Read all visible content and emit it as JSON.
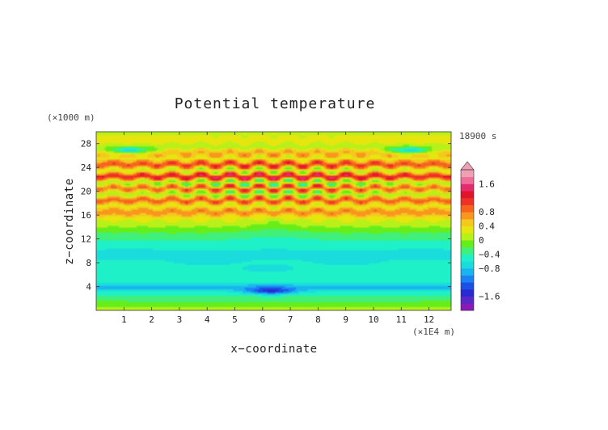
{
  "chart_data": {
    "type": "heatmap",
    "title": "Potential temperature",
    "xlabel": "x−coordinate",
    "ylabel": "z−coordinate",
    "x_unit": "(×1E4 m)",
    "y_unit": "(×1000 m)",
    "time_label": "18900 s",
    "xlim": [
      0,
      12.8
    ],
    "ylim": [
      0,
      30
    ],
    "x_ticks": [
      1,
      2,
      3,
      4,
      5,
      6,
      7,
      8,
      9,
      10,
      11,
      12
    ],
    "y_ticks": [
      4,
      8,
      12,
      16,
      20,
      24,
      28
    ],
    "colorbar": {
      "range": [
        -2.0,
        2.0
      ],
      "step": 0.2,
      "tick_values": [
        1.6,
        0.8,
        0.4,
        0,
        -0.4,
        -0.8,
        -1.6
      ],
      "tick_labels": [
        "1.6",
        "0.8",
        "0.4",
        "0",
        "−0.4",
        "−0.8",
        "−1.6"
      ],
      "colors": [
        "#8a1ab8",
        "#5a28c8",
        "#2a2ad2",
        "#1a50e6",
        "#1a82f4",
        "#1ab4f0",
        "#1adcdc",
        "#1ef0c8",
        "#40f07a",
        "#66ee1a",
        "#b8f01a",
        "#e6e60e",
        "#f5c81e",
        "#f8961e",
        "#f5641e",
        "#ee3228",
        "#e0142a",
        "#e62a6e",
        "#ee6e9a",
        "#f0a0b4"
      ],
      "top_arrow_color": "#f0a0b4"
    },
    "profile_z": [
      0,
      2,
      3,
      3.8,
      4.5,
      6,
      7.5,
      9.5,
      11,
      12.5,
      14,
      15.5,
      16.5,
      17.5,
      18.5,
      19.5,
      20.5,
      21.5,
      22.5,
      23.5,
      24.5,
      25.5,
      26.5,
      27.5,
      28.5,
      30
    ],
    "profile_values": [
      0.1,
      -0.3,
      -0.5,
      -0.9,
      -0.6,
      -0.45,
      -0.55,
      -0.65,
      -0.5,
      -0.3,
      0.0,
      0.3,
      0.8,
      0.3,
      0.9,
      0.1,
      0.8,
      0.05,
      1.2,
      0.2,
      1.0,
      0.4,
      0.6,
      0.1,
      0.3,
      0.15
    ],
    "features": [
      {
        "type": "band",
        "x_range": [
          0,
          12.8
        ],
        "z_center": 3.9,
        "value": -0.9
      },
      {
        "type": "blob",
        "x": 6.3,
        "z": 3.3,
        "value": -1.6
      },
      {
        "type": "blob",
        "x": 4.0,
        "z": 8.3,
        "value": -0.8
      },
      {
        "type": "blob",
        "x": 6.2,
        "z": 7.0,
        "value": -0.8
      },
      {
        "type": "blob",
        "x": 9.0,
        "z": 8.3,
        "value": -0.8
      },
      {
        "type": "blob",
        "x": 1.2,
        "z": 9.6,
        "value": -0.8
      },
      {
        "type": "blob",
        "x": 11.7,
        "z": 9.6,
        "value": -0.8
      },
      {
        "type": "blob",
        "x": 1.2,
        "z": 26.9,
        "value": -0.8
      },
      {
        "type": "blob",
        "x": 11.3,
        "z": 26.9,
        "value": -0.8
      }
    ]
  }
}
